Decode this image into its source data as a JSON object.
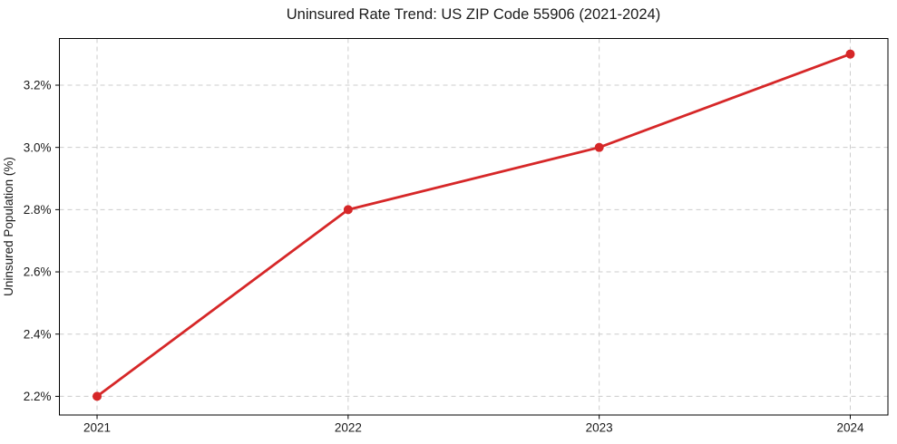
{
  "figure": {
    "background": "#ffffff"
  },
  "chart_data": {
    "type": "line",
    "title": "Uninsured Rate Trend: US ZIP Code 55906 (2021-2024)",
    "xlabel": "",
    "ylabel": "Uninsured Population (%)",
    "x": [
      2021,
      2022,
      2023,
      2024
    ],
    "x_tick_labels": [
      "2021",
      "2022",
      "2023",
      "2024"
    ],
    "series": [
      {
        "name": "Uninsured rate",
        "values": [
          2.2,
          2.8,
          3.0,
          3.3
        ],
        "color": "#d62728",
        "marker": "circle"
      }
    ],
    "y_ticks": [
      2.2,
      2.4,
      2.6,
      2.8,
      3.0,
      3.2
    ],
    "y_tick_labels": [
      "2.2%",
      "2.4%",
      "2.6%",
      "2.8%",
      "3.0%",
      "3.2%"
    ],
    "xlim": [
      2020.85,
      2024.15
    ],
    "ylim": [
      2.14,
      3.35
    ],
    "grid": true,
    "grid_style": "dashed",
    "grid_color": "#cccccc",
    "legend": "none",
    "axis_color": "#000000",
    "text_color": "#1a1a1a",
    "line_width": 2.8,
    "marker_radius": 5
  }
}
